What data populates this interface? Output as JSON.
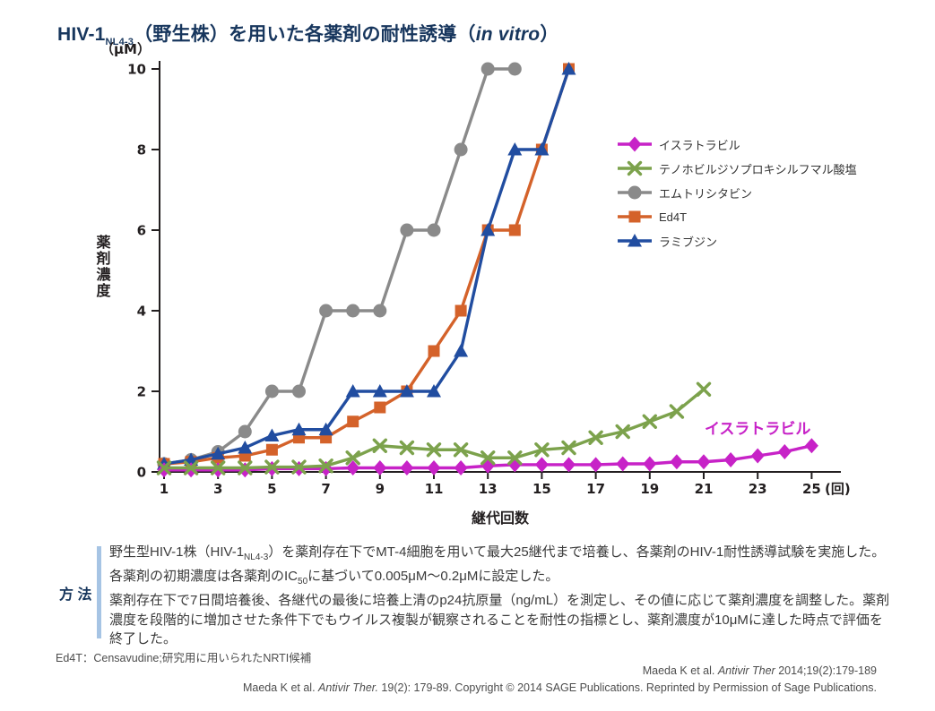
{
  "title": {
    "prefix": "HIV-1",
    "subscript": "NL4-3",
    "middle": "（野生株）を用いた各薬剤の耐性誘導（",
    "italic": "in vitro",
    "suffix": "）"
  },
  "chart_data": {
    "type": "line",
    "title": "HIV-1NL4-3（野生株）を用いた各薬剤の耐性誘導（in vitro）",
    "xlabel": "継代回数",
    "x_unit": "(回)",
    "ylabel": "薬剤濃度",
    "y_unit": "（μM）",
    "xlim": [
      1,
      25
    ],
    "ylim": [
      0,
      10
    ],
    "xticks": [
      1,
      3,
      5,
      7,
      9,
      11,
      13,
      15,
      17,
      19,
      21,
      23,
      25
    ],
    "yticks": [
      0,
      2,
      4,
      6,
      8,
      10
    ],
    "grid": false,
    "legend_position": "right",
    "annotation": {
      "text": "イスラトラビル",
      "x": 23,
      "y": 0.95,
      "color": "#c722c7"
    },
    "series": [
      {
        "id": "islatravir",
        "name": "イスラトラビル",
        "marker": "diamond",
        "color": "#c722c7",
        "x": [
          1,
          2,
          3,
          4,
          5,
          6,
          7,
          8,
          9,
          10,
          11,
          12,
          13,
          14,
          15,
          16,
          17,
          18,
          19,
          20,
          21,
          22,
          23,
          24,
          25
        ],
        "values": [
          0.05,
          0.05,
          0.05,
          0.05,
          0.08,
          0.08,
          0.08,
          0.1,
          0.1,
          0.1,
          0.1,
          0.1,
          0.15,
          0.18,
          0.18,
          0.18,
          0.18,
          0.2,
          0.2,
          0.25,
          0.25,
          0.3,
          0.4,
          0.5,
          0.65
        ]
      },
      {
        "id": "tenofovir-df",
        "name": "テノホビルジソプロキシルフマル酸塩",
        "marker": "x",
        "color": "#7ca24c",
        "x": [
          1,
          2,
          3,
          4,
          5,
          6,
          7,
          8,
          9,
          10,
          11,
          12,
          13,
          14,
          15,
          16,
          17,
          18,
          19,
          20,
          21
        ],
        "values": [
          0.1,
          0.1,
          0.1,
          0.1,
          0.12,
          0.12,
          0.15,
          0.35,
          0.65,
          0.6,
          0.55,
          0.55,
          0.35,
          0.35,
          0.55,
          0.6,
          0.85,
          1.0,
          1.25,
          1.5,
          2.05
        ]
      },
      {
        "id": "emtricitabine",
        "name": "エムトリシタビン",
        "marker": "circle",
        "color": "#8a8a8a",
        "x": [
          1,
          2,
          3,
          4,
          5,
          6,
          7,
          8,
          9,
          10,
          11,
          12,
          13,
          14
        ],
        "values": [
          0.2,
          0.3,
          0.5,
          1.0,
          2.0,
          2.0,
          4.0,
          4.0,
          4.0,
          6.0,
          6.0,
          8.0,
          10.0,
          10.0
        ]
      },
      {
        "id": "ed4t",
        "name": "Ed4T",
        "marker": "square",
        "color": "#d4622a",
        "x": [
          1,
          2,
          3,
          4,
          5,
          6,
          7,
          8,
          9,
          10,
          11,
          12,
          13,
          14,
          15,
          16
        ],
        "values": [
          0.2,
          0.25,
          0.35,
          0.4,
          0.55,
          0.85,
          0.85,
          1.25,
          1.6,
          2.0,
          3.0,
          4.0,
          6.0,
          6.0,
          8.0,
          10.0
        ]
      },
      {
        "id": "lamivudine",
        "name": "ラミブジン",
        "marker": "triangle",
        "color": "#214da0",
        "x": [
          1,
          2,
          3,
          4,
          5,
          6,
          7,
          8,
          9,
          10,
          11,
          12,
          13,
          14,
          15,
          16
        ],
        "values": [
          0.2,
          0.3,
          0.45,
          0.6,
          0.9,
          1.05,
          1.05,
          2.0,
          2.0,
          2.0,
          2.0,
          3.0,
          6.0,
          8.0,
          8.0,
          10.0
        ]
      }
    ]
  },
  "method": {
    "label": "方 法",
    "line1_pre": "野生型HIV-1株（HIV-1",
    "line1_sub": "NL4-3",
    "line1_post": "）を薬剤存在下でMT-4細胞を用いて最大25継代まで培養し、各薬剤のHIV-1耐性誘導試験を実施した。",
    "line2_pre": "各薬剤の初期濃度は各薬剤のIC",
    "line2_sub": "50",
    "line2_post": "に基づいて0.005μM～0.2μMに設定した。",
    "line3": "薬剤存在下で7日間培養後、各継代の最後に培養上清のp24抗原量（ng/mL）を測定し、その値に応じて薬剤濃度を調整した。薬剤",
    "line4": "濃度を段階的に増加させた条件下でもウイルス複製が観察されることを耐性の指標とし、薬剤濃度が10μMに達した時点で評価を",
    "line5": "終了した。"
  },
  "footnote": "Ed4T：Censavudine;研究用に用いられたNRTI候補",
  "references": {
    "ref1_pre": "Maeda K et al. ",
    "ref1_italic": "Antivir Ther",
    "ref1_post": " 2014;19(2):179-189",
    "ref2_pre": "Maeda K et al. ",
    "ref2_italic": "Antivir Ther.",
    "ref2_post": " 19(2): 179-89. Copyright © 2014 SAGE Publications. Reprinted by Permission of Sage Publications."
  }
}
